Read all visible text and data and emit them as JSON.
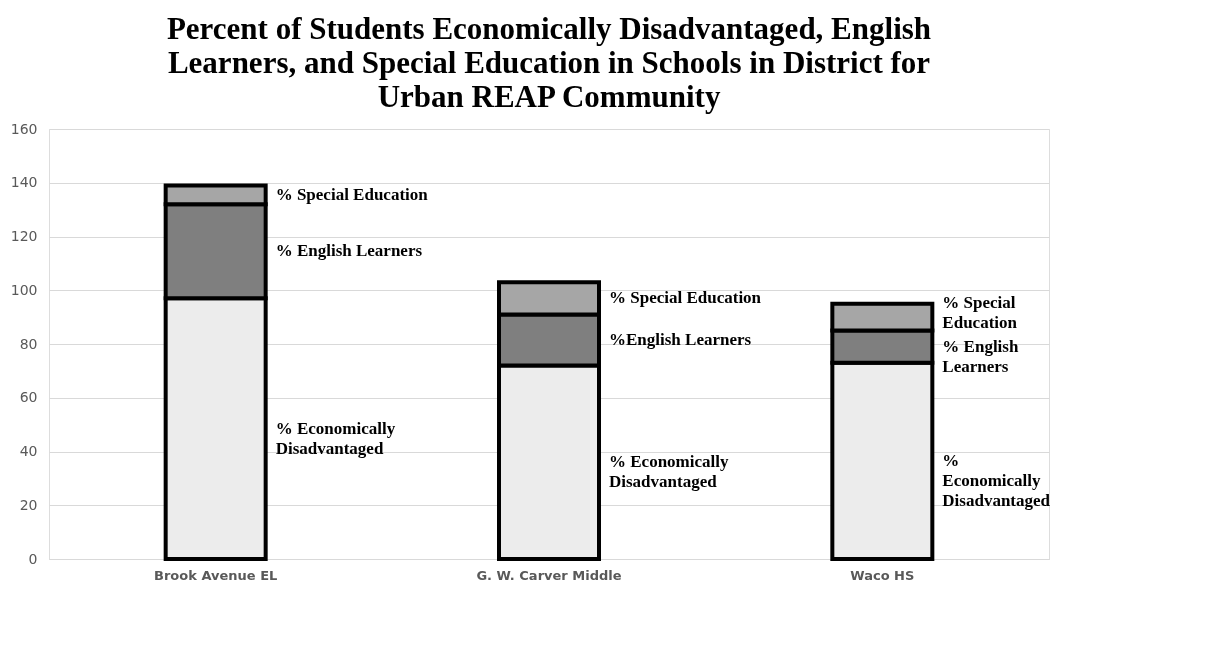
{
  "chart_data": {
    "type": "bar",
    "stacked": true,
    "title": "Percent of Students Economically Disadvantaged, English Learners, and Special Education in Schools in District for Urban REAP Community",
    "categories": [
      "Brook Avenue EL",
      "G. W. Carver Middle",
      "Waco HS"
    ],
    "series": [
      {
        "color": "#ececec",
        "values": [
          97,
          72,
          73
        ]
      },
      {
        "color": "#7f7f7f",
        "values": [
          35,
          19,
          12
        ]
      },
      {
        "color": "#a6a6a6",
        "values": [
          7,
          12,
          10
        ]
      }
    ],
    "ylim": [
      0,
      160
    ],
    "yticks": [
      0,
      20,
      40,
      60,
      80,
      100,
      120,
      140,
      160
    ],
    "grid": "y",
    "legend": false,
    "annotations": [
      "% Economically\nDisadvantaged",
      "% English Learners",
      "% Special Education",
      "% Economically\nDisadvantaged",
      "%English Learners",
      "% Special Education",
      "%\nEconomically\nDisadvantaged",
      "% English\nLearners",
      "% Special\nEducation"
    ]
  }
}
